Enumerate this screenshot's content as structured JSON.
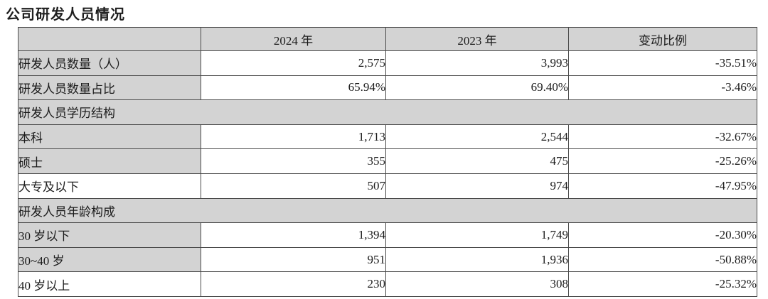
{
  "page": {
    "title": "公司研发人员情况"
  },
  "colors": {
    "shaded": "#d3d3d3",
    "border": "#4a4a4a",
    "text": "#1c1c1c"
  },
  "table": {
    "columns": [
      "",
      "2024 年",
      "2023 年",
      "变动比例"
    ],
    "rows": [
      {
        "type": "data",
        "label": "研发人员数量（人）",
        "v2024": "2,575",
        "v2023": "3,993",
        "change": "-35.51%",
        "label_shaded": true
      },
      {
        "type": "data",
        "label": "研发人员数量占比",
        "v2024": "65.94%",
        "v2023": "69.40%",
        "change": "-3.46%",
        "label_shaded": true
      },
      {
        "type": "section",
        "label": "研发人员学历结构"
      },
      {
        "type": "data",
        "label": "本科",
        "v2024": "1,713",
        "v2023": "2,544",
        "change": "-32.67%",
        "label_shaded": true
      },
      {
        "type": "data",
        "label": "硕士",
        "v2024": "355",
        "v2023": "475",
        "change": "-25.26%",
        "label_shaded": true
      },
      {
        "type": "data",
        "label": "大专及以下",
        "v2024": "507",
        "v2023": "974",
        "change": "-47.95%",
        "label_shaded": false
      },
      {
        "type": "section",
        "label": "研发人员年龄构成"
      },
      {
        "type": "data",
        "label": "30 岁以下",
        "v2024": "1,394",
        "v2023": "1,749",
        "change": "-20.30%",
        "label_shaded": true
      },
      {
        "type": "data",
        "label": "30~40 岁",
        "v2024": "951",
        "v2023": "1,936",
        "change": "-50.88%",
        "label_shaded": true
      },
      {
        "type": "data",
        "label": "40 岁以上",
        "v2024": "230",
        "v2023": "308",
        "change": "-25.32%",
        "label_shaded": false
      }
    ]
  }
}
